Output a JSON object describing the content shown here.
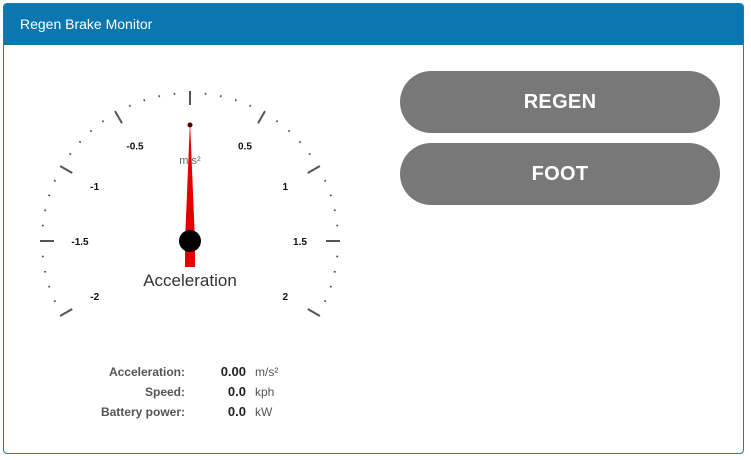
{
  "panel": {
    "title": "Regen Brake Monitor"
  },
  "gauge": {
    "title": "Acceleration",
    "unit": "m/s²",
    "min": -2,
    "max": 2,
    "value": 0.0,
    "major_ticks": [
      -2,
      -1.5,
      -1,
      -0.5,
      0,
      0.5,
      1,
      1.5,
      2
    ],
    "tick_labels": [
      "-2",
      "-1.5",
      "-1",
      "-0.5",
      "0.5",
      "1",
      "1.5",
      "2"
    ],
    "needle_color": "#e30000",
    "hub_color": "#000000"
  },
  "buttons": {
    "regen_label": "REGEN",
    "foot_label": "FOOT"
  },
  "readouts": [
    {
      "label": "Acceleration:",
      "value": "0.00",
      "unit": "m/s²"
    },
    {
      "label": "Speed:",
      "value": "0.0",
      "unit": "kph"
    },
    {
      "label": "Battery power:",
      "value": "0.0",
      "unit": "kW"
    }
  ]
}
